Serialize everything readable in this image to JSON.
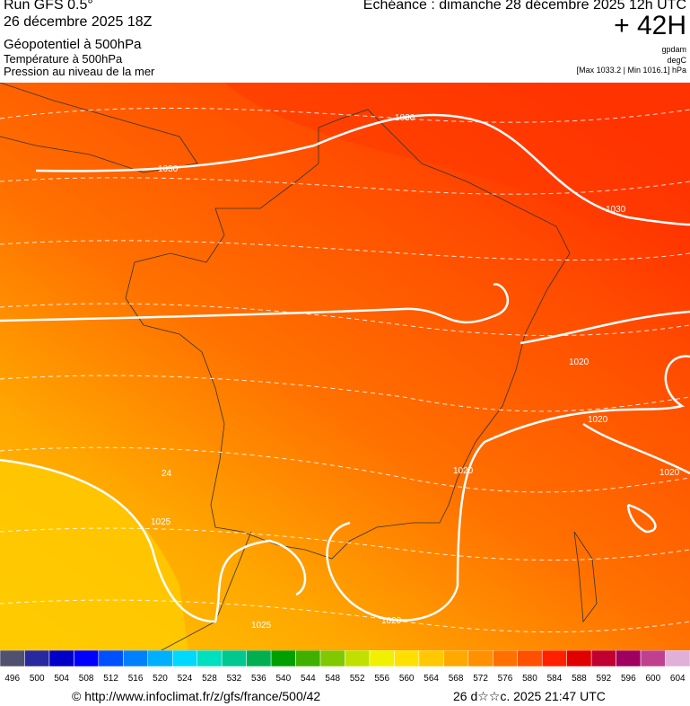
{
  "header": {
    "run": "Run GFS 0.5°",
    "date": "26 décembre 2025 18Z",
    "field1": "Géopotentiel à 500hPa",
    "field2": "Température à 500hPa",
    "field3": "Pression au niveau de la mer",
    "echeance": "Echéance : dimanche 28 décembre 2025 12h UTC",
    "lead": "+ 42H",
    "unit1": "gpdam",
    "unit2": "degC",
    "range": "[Max 1033.2 | Min 1016.1] hPa"
  },
  "contour_labels": [
    "1030",
    "1030",
    "1030",
    "1020",
    "1020",
    "1020",
    "1020",
    "1025",
    "1020",
    "1025",
    "24"
  ],
  "colorbar": {
    "labels": [
      496,
      500,
      504,
      508,
      512,
      516,
      520,
      524,
      528,
      532,
      536,
      540,
      544,
      548,
      552,
      556,
      560,
      564,
      568,
      572,
      576,
      580,
      584,
      588,
      592,
      596,
      600,
      604
    ],
    "colors": [
      "#505070",
      "#2828a0",
      "#0000c8",
      "#0000ff",
      "#0050ff",
      "#0080ff",
      "#00b0ff",
      "#00d8ff",
      "#00e0c0",
      "#00c890",
      "#00b050",
      "#00a000",
      "#40b000",
      "#80c800",
      "#c0e000",
      "#f0f000",
      "#ffe000",
      "#ffc800",
      "#ffa800",
      "#ff9000",
      "#ff7000",
      "#ff5000",
      "#ff2000",
      "#e00000",
      "#c00030",
      "#a00060",
      "#c04090",
      "#e0b0d8"
    ]
  },
  "footer": {
    "url": "© http://www.infoclimat.fr/z/gfs/france/500/42",
    "time": "26 d☆☆c. 2025 21:47 UTC"
  }
}
